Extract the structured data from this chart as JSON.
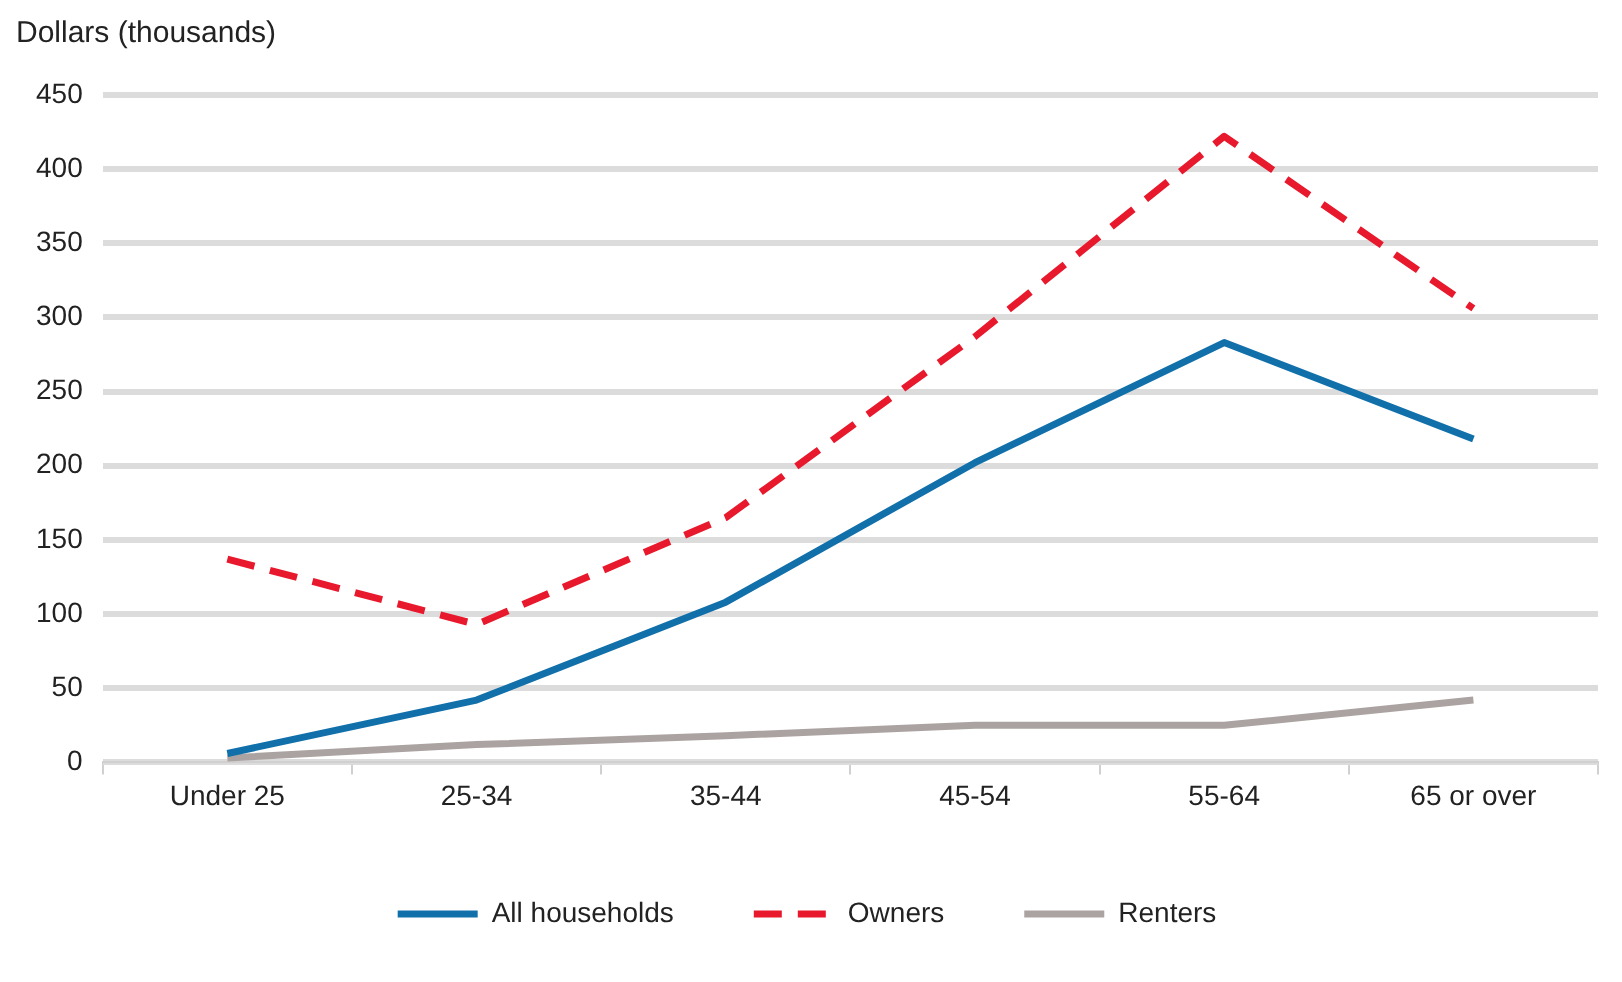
{
  "chart_data": {
    "type": "line",
    "ylabel": "Dollars (thousands)",
    "categories": [
      "Under 25",
      "25-34",
      "35-44",
      "45-54",
      "55-64",
      "65 or over"
    ],
    "series": [
      {
        "name": "All households",
        "color": "#1170aa",
        "values": [
          6,
          42,
          108,
          202,
          283,
          218
        ]
      },
      {
        "name": "Owners",
        "color": "#e8192c",
        "line_style": "dashed",
        "values": [
          137,
          93,
          165,
          287,
          422,
          306
        ]
      },
      {
        "name": "Renters",
        "color": "#aba3a1",
        "values": [
          3,
          12,
          18,
          25,
          25,
          42
        ]
      }
    ],
    "ylim": [
      0,
      450
    ],
    "yticks": [
      0,
      50,
      100,
      150,
      200,
      250,
      300,
      350,
      400,
      450
    ],
    "grid": "y",
    "legend": "bottom",
    "marker": "none",
    "line_style": "solid"
  }
}
